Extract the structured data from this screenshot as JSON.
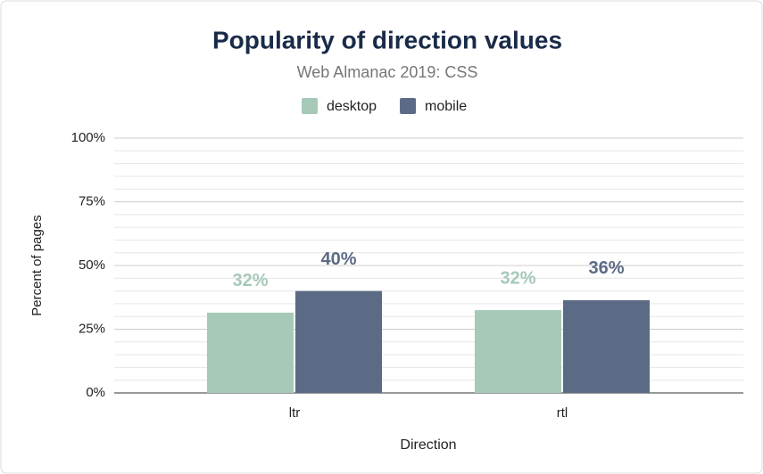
{
  "chart_data": {
    "type": "bar",
    "title": "Popularity of direction values",
    "subtitle": "Web Almanac 2019: CSS",
    "xlabel": "Direction",
    "ylabel": "Percent of pages",
    "categories": [
      "ltr",
      "rtl"
    ],
    "series": [
      {
        "name": "desktop",
        "color": "#a6c9b8",
        "values": [
          31.5,
          32.5
        ],
        "value_labels": [
          "32%",
          "32%"
        ]
      },
      {
        "name": "mobile",
        "color": "#5c6b85",
        "values": [
          40,
          36.4
        ],
        "value_labels": [
          "40%",
          "36%"
        ]
      }
    ],
    "ylim": [
      0,
      100
    ],
    "yticks": [
      {
        "value": 0,
        "label": "0%"
      },
      {
        "value": 25,
        "label": "25%"
      },
      {
        "value": 50,
        "label": "50%"
      },
      {
        "value": 75,
        "label": "75%"
      },
      {
        "value": 100,
        "label": "100%"
      }
    ],
    "minor_yticks": [
      5,
      10,
      15,
      20,
      30,
      35,
      40,
      45,
      55,
      60,
      65,
      70,
      80,
      85,
      90,
      95
    ],
    "grid": true,
    "legend": "top"
  }
}
